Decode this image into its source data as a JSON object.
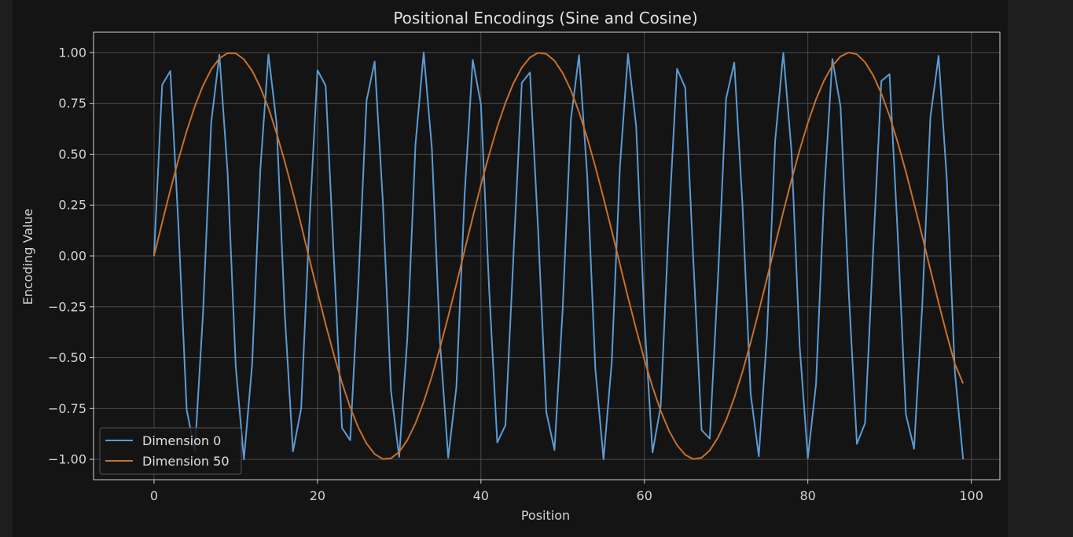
{
  "chart_data": {
    "type": "line",
    "title": "Positional Encodings (Sine and Cosine)",
    "xlabel": "Position",
    "ylabel": "Encoding Value",
    "xlim": [
      -7.4,
      103.5
    ],
    "ylim": [
      -1.1,
      1.1
    ],
    "xticks": [
      0,
      20,
      40,
      60,
      80,
      100
    ],
    "xtick_labels": [
      "0",
      "20",
      "40",
      "60",
      "80",
      "100"
    ],
    "yticks": [
      -1.0,
      -0.75,
      -0.5,
      -0.25,
      0.0,
      0.25,
      0.5,
      0.75,
      1.0
    ],
    "ytick_labels": [
      "−1.00",
      "−0.75",
      "−0.50",
      "−0.25",
      "0.00",
      "0.25",
      "0.50",
      "0.75",
      "1.00"
    ],
    "grid": true,
    "legend_loc": "lower-left",
    "series": [
      {
        "name": "Dimension 0",
        "color": "#5b9bd5",
        "x": [
          0,
          1,
          2,
          3,
          4,
          5,
          6,
          7,
          8,
          9,
          10,
          11,
          12,
          13,
          14,
          15,
          16,
          17,
          18,
          19,
          20,
          21,
          22,
          23,
          24,
          25,
          26,
          27,
          28,
          29,
          30,
          31,
          32,
          33,
          34,
          35,
          36,
          37,
          38,
          39,
          40,
          41,
          42,
          43,
          44,
          45,
          46,
          47,
          48,
          49,
          50,
          51,
          52,
          53,
          54,
          55,
          56,
          57,
          58,
          59,
          60,
          61,
          62,
          63,
          64,
          65,
          66,
          67,
          68,
          69,
          70,
          71,
          72,
          73,
          74,
          75,
          76,
          77,
          78,
          79,
          80,
          81,
          82,
          83,
          84,
          85,
          86,
          87,
          88,
          89,
          90,
          91,
          92,
          93,
          94,
          95,
          96,
          97,
          98,
          99
        ],
        "values": [
          0.0,
          0.841,
          0.909,
          0.141,
          -0.757,
          -0.959,
          -0.279,
          0.657,
          0.989,
          0.412,
          -0.544,
          -1.0,
          -0.537,
          0.42,
          0.991,
          0.65,
          -0.288,
          -0.961,
          -0.751,
          0.15,
          0.913,
          0.837,
          -0.009,
          -0.846,
          -0.906,
          -0.132,
          0.763,
          0.956,
          0.271,
          -0.664,
          -0.988,
          -0.404,
          0.551,
          1.0,
          0.529,
          -0.428,
          -0.992,
          -0.644,
          0.296,
          0.964,
          0.745,
          -0.159,
          -0.917,
          -0.832,
          0.018,
          0.851,
          0.902,
          0.124,
          -0.768,
          -0.954,
          -0.262,
          0.67,
          0.987,
          0.396,
          -0.559,
          -1.0,
          -0.522,
          0.436,
          0.993,
          0.637,
          -0.305,
          -0.966,
          -0.739,
          0.167,
          0.92,
          0.827,
          -0.027,
          -0.856,
          -0.898,
          -0.115,
          0.774,
          0.951,
          0.254,
          -0.677,
          -0.985,
          -0.388,
          0.566,
          0.999,
          0.514,
          -0.444,
          -0.994,
          -0.63,
          0.313,
          0.968,
          0.733,
          -0.176,
          -0.924,
          -0.822,
          0.035,
          0.86,
          0.894,
          0.106,
          -0.779,
          -0.948,
          -0.245,
          0.683,
          0.984,
          0.38,
          -0.573,
          -0.999
        ]
      },
      {
        "name": "Dimension 50",
        "color": "#c8702a",
        "x": [
          0,
          1,
          2,
          3,
          4,
          5,
          6,
          7,
          8,
          9,
          10,
          11,
          12,
          13,
          14,
          15,
          16,
          17,
          18,
          19,
          20,
          21,
          22,
          23,
          24,
          25,
          26,
          27,
          28,
          29,
          30,
          31,
          32,
          33,
          34,
          35,
          36,
          37,
          38,
          39,
          40,
          41,
          42,
          43,
          44,
          45,
          46,
          47,
          48,
          49,
          50,
          51,
          52,
          53,
          54,
          55,
          56,
          57,
          58,
          59,
          60,
          61,
          62,
          63,
          64,
          65,
          66,
          67,
          68,
          69,
          70,
          71,
          72,
          73,
          74,
          75,
          76,
          77,
          78,
          79,
          80,
          81,
          82,
          83,
          84,
          85,
          86,
          87,
          88,
          89,
          90,
          91,
          92,
          93,
          94,
          95,
          96,
          97,
          98,
          99
        ],
        "values": [
          0.0,
          0.164,
          0.324,
          0.475,
          0.614,
          0.736,
          0.838,
          0.917,
          0.971,
          0.997,
          0.996,
          0.967,
          0.911,
          0.83,
          0.727,
          0.603,
          0.463,
          0.311,
          0.152,
          -0.013,
          -0.177,
          -0.336,
          -0.486,
          -0.624,
          -0.744,
          -0.844,
          -0.922,
          -0.974,
          -0.998,
          -0.995,
          -0.963,
          -0.905,
          -0.822,
          -0.717,
          -0.592,
          -0.45,
          -0.298,
          -0.138,
          0.027,
          0.19,
          0.349,
          0.498,
          0.634,
          0.753,
          0.851,
          0.926,
          0.976,
          0.999,
          0.993,
          0.96,
          0.899,
          0.815,
          0.707,
          0.581,
          0.438,
          0.284,
          0.124,
          -0.041,
          -0.203,
          -0.361,
          -0.509,
          -0.644,
          -0.761,
          -0.858,
          -0.93,
          -0.978,
          -0.999,
          -0.992,
          -0.956,
          -0.893,
          -0.807,
          -0.697,
          -0.57,
          -0.426,
          -0.271,
          -0.111,
          0.054,
          0.217,
          0.374,
          0.521,
          0.654,
          0.77,
          0.864,
          0.935,
          0.981,
          1.0,
          0.991,
          0.952,
          0.887,
          0.799,
          0.688,
          0.558,
          0.414,
          0.258,
          0.098,
          -0.068,
          -0.23,
          -0.386,
          -0.532,
          -0.627
        ]
      }
    ]
  }
}
